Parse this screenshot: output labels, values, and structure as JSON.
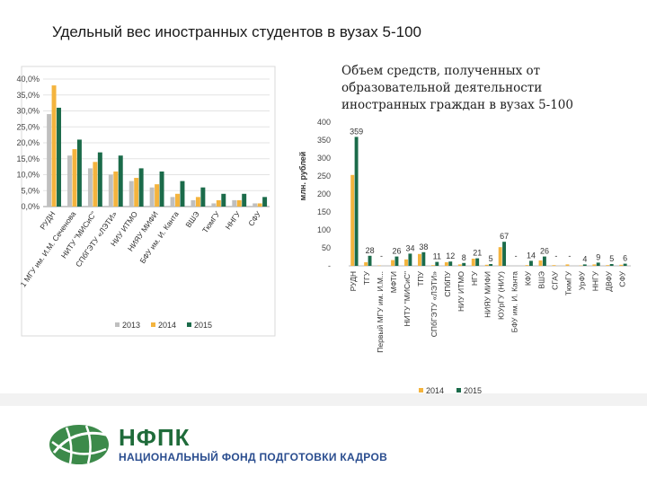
{
  "slide": {
    "title": "Удельный вес иностранных студентов в вузах 5-100"
  },
  "logo": {
    "abbr": "НФПК",
    "full": "НАЦИОНАЛЬНЫЙ ФОНД ПОДГОТОВКИ КАДРОВ",
    "color": "#1f6b3a"
  },
  "colors": {
    "y2013": "#bfbfbf",
    "y2014": "#f4b43e",
    "y2015": "#1b6b4a"
  },
  "chart_data": [
    {
      "type": "bar",
      "title": "",
      "categories": [
        "РУДН",
        "Первый МГУ им. И.М. Сеченова",
        "НИТУ \"МИСиС\"",
        "СПбГЭТУ «ЛЭТИ»",
        "НИУ ИТМО",
        "НИЯУ МИФИ",
        "БФУ им. И. Канта",
        "ВШЭ",
        "ТюмГУ",
        "ННГУ",
        "СФУ"
      ],
      "categories_short": [
        "РУДН",
        "1 МГУ им. И.М. Сеченова",
        "НИТУ \"МИСиС\"",
        "СПбГЭТУ «ЛЭТИ»",
        "НИУ ИТМО",
        "НИЯУ МИФИ",
        "БФУ им. И. Канта",
        "ВШЭ",
        "ТюмГУ",
        "ННГУ",
        "СФУ"
      ],
      "series": [
        {
          "name": "2013",
          "values": [
            29,
            16,
            12,
            10,
            8,
            6,
            3,
            2,
            1,
            2,
            1
          ]
        },
        {
          "name": "2014",
          "values": [
            38,
            18,
            14,
            11,
            9,
            7,
            4,
            3,
            2,
            2,
            1
          ]
        },
        {
          "name": "2015",
          "values": [
            31,
            21,
            17,
            16,
            12,
            11,
            8,
            6,
            4,
            4,
            3
          ]
        }
      ],
      "ylim": [
        0,
        40
      ],
      "yticks": [
        "0,0%",
        "5,0%",
        "10,0%",
        "15,0%",
        "20,0%",
        "25,0%",
        "30,0%",
        "35,0%",
        "40,0%"
      ],
      "legend": [
        "2013",
        "2014",
        "2015"
      ],
      "legend_position": "bottom",
      "grid": true
    },
    {
      "type": "bar",
      "title": "Объем средств, полученных от образовательной деятельности иностранных граждан в вузах 5-100",
      "ylabel": "млн. рублей",
      "ylim": [
        0,
        400
      ],
      "yticks": [
        "-",
        "50",
        "100",
        "150",
        "200",
        "250",
        "300",
        "350",
        "400"
      ],
      "categories": [
        "РУДН",
        "ТГУ",
        "Первый МГУ им. И.М...",
        "МФТИ",
        "НИТУ \"МИСиС\"",
        "ТПУ",
        "СПбГЭТУ «ЛЭТИ»",
        "СПбПУ",
        "НИУ ИТМО",
        "НГУ",
        "НИЯУ МИФИ",
        "ЮУрГУ (НИУ)",
        "БФУ им. И. Канта",
        "КФУ",
        "ВШЭ",
        "СГАУ",
        "ТюмГУ",
        "УрФУ",
        "ННГУ",
        "ДВФУ",
        "СФУ"
      ],
      "series": [
        {
          "name": "2014",
          "values": [
            253,
            10,
            1,
            16,
            18,
            33,
            2,
            10,
            4,
            20,
            3,
            52,
            0,
            2,
            15,
            2,
            4,
            1,
            4,
            2,
            3
          ]
        },
        {
          "name": "2015",
          "values": [
            359,
            28,
            0,
            26,
            34,
            38,
            11,
            12,
            8,
            21,
            5,
            67,
            0,
            14,
            26,
            0,
            0,
            4,
            9,
            5,
            6
          ]
        }
      ],
      "data_labels": [
        "359",
        "28",
        "",
        "26",
        "34",
        "38",
        "11",
        "12",
        "8",
        "21",
        "5",
        "67",
        "",
        "14",
        "26",
        "",
        "",
        "4",
        "9",
        "5",
        "6"
      ],
      "dash_labels": [
        false,
        false,
        true,
        false,
        false,
        false,
        false,
        false,
        false,
        false,
        false,
        false,
        true,
        false,
        false,
        true,
        true,
        false,
        false,
        false,
        false
      ],
      "legend": [
        "2014",
        "2015"
      ],
      "legend_position": "bottom"
    }
  ]
}
